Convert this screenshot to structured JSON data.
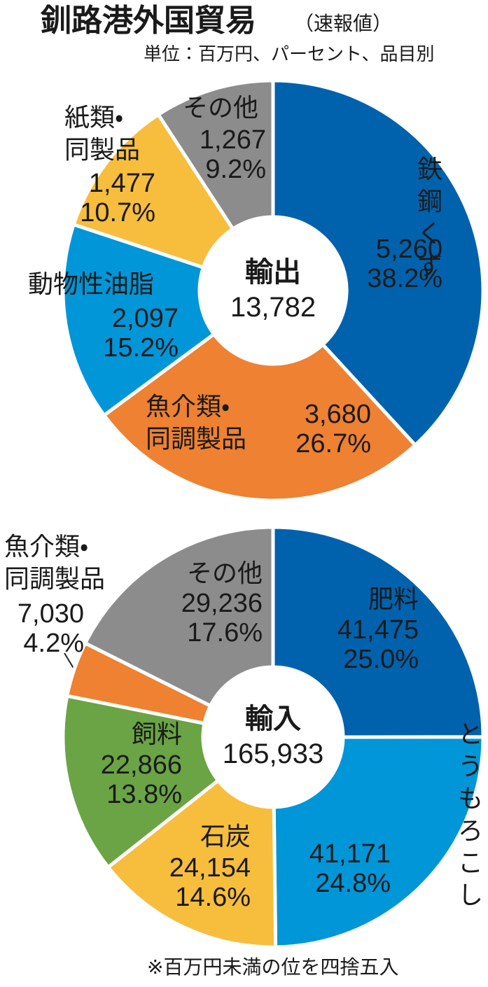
{
  "header": {
    "title": "釧路港外国貿易",
    "subtitle": "（速報値）",
    "unit": "単位：百万円、パーセント、品目別"
  },
  "footnote": "※百万円未満の位を四捨五入",
  "chart_data": [
    {
      "type": "donut",
      "title": "輸出",
      "total": 13782,
      "total_label": "13,782",
      "categories": [
        "鉄鋼くず",
        "魚介類・\n同調製品",
        "動物性油脂",
        "紙類・\n同製品",
        "その他"
      ],
      "values": [
        5260,
        3680,
        2097,
        1477,
        1267
      ],
      "value_labels": [
        "5,260",
        "3,680",
        "2,097",
        "1,477",
        "1,267"
      ],
      "shares": [
        38.2,
        26.7,
        15.2,
        10.7,
        9.2
      ],
      "share_labels": [
        "38.2%",
        "26.7%",
        "15.2%",
        "10.7%",
        "9.2%"
      ],
      "colors": [
        "#0062ad",
        "#ee8132",
        "#0096d8",
        "#f7bd3d",
        "#8c8c8c"
      ]
    },
    {
      "type": "donut",
      "title": "輸入",
      "total": 165933,
      "total_label": "165,933",
      "categories": [
        "肥料",
        "とうもろこし",
        "石炭",
        "飼料",
        "魚介類・\n同調製品",
        "その他"
      ],
      "values": [
        41475,
        41171,
        24154,
        22866,
        7030,
        29236
      ],
      "value_labels": [
        "41,475",
        "41,171",
        "24,154",
        "22,866",
        "7,030",
        "29,236"
      ],
      "shares": [
        25.0,
        24.8,
        14.6,
        13.8,
        4.2,
        17.6
      ],
      "share_labels": [
        "25.0%",
        "24.8%",
        "14.6%",
        "13.8%",
        "4.2%",
        "17.6%"
      ],
      "colors": [
        "#0062ad",
        "#0096d8",
        "#f7bd3d",
        "#6aa444",
        "#ee8132",
        "#8c8c8c"
      ]
    }
  ]
}
